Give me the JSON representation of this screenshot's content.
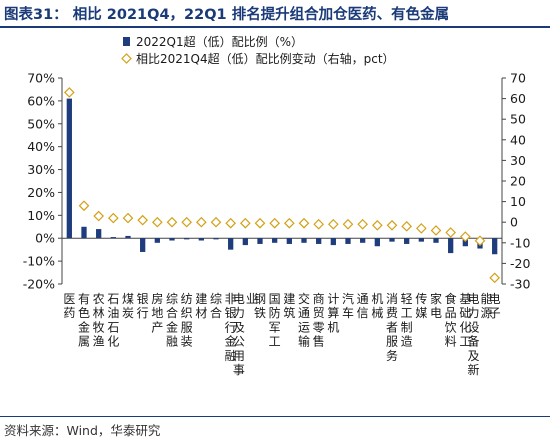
{
  "header": {
    "title": "图表31： 相比 2021Q4，22Q1 排名提升组合加仓医药、有色金属"
  },
  "footer": {
    "source": "资料来源：Wind，华泰研究"
  },
  "colors": {
    "bar": "#1f3d7c",
    "marker": "#d4a017",
    "title": "#1a3a78"
  },
  "chart_data": {
    "type": "bar",
    "categories": [
      "医药",
      "有色金属",
      "农林牧渔",
      "石油石化",
      "煤炭",
      "银行",
      "房地产",
      "综合金融",
      "纺织服装",
      "建材",
      "综合",
      "非银行金融",
      "电力及公用事业",
      "钢铁",
      "国防军工",
      "建筑",
      "交通运输",
      "商贸零售",
      "计算机",
      "汽车",
      "通信",
      "机械",
      "消费者服务",
      "轻工制造",
      "传媒",
      "家电",
      "食品饮料",
      "基础化工",
      "电力设备及新能源",
      "电子"
    ],
    "series": [
      {
        "name": "2022Q1超（低）配比例（%）",
        "type": "bar",
        "axis": "left",
        "values": [
          61,
          5,
          4,
          0.5,
          1,
          -6,
          -2,
          -1,
          -0.5,
          -1,
          -0.5,
          -5,
          -3,
          -2.5,
          -2,
          -2.5,
          -2,
          -2.5,
          -3,
          -2.5,
          -2,
          -3.5,
          -1.5,
          -2.5,
          -1.5,
          -2,
          -6.5,
          -3.5,
          -4.5,
          -7
        ]
      },
      {
        "name": "相比2021Q4超（低）配比例变动（右轴，pct）",
        "type": "scatter",
        "axis": "right",
        "values": [
          63,
          8,
          3,
          2,
          2,
          1,
          0,
          0,
          0,
          0,
          0,
          -0.5,
          -0.5,
          -0.5,
          -0.5,
          -0.5,
          -0.5,
          -1,
          -1,
          -1,
          -1,
          -1.5,
          -1.5,
          -2,
          -3,
          -4,
          -5,
          -7,
          -9,
          -27
        ]
      }
    ],
    "y_left": {
      "min": -20,
      "max": 70,
      "ticks": [
        "70%",
        "60%",
        "50%",
        "40%",
        "30%",
        "20%",
        "10%",
        "0%",
        "-10%",
        "-20%"
      ]
    },
    "y_right": {
      "min": -30,
      "max": 70,
      "ticks": [
        "70",
        "60",
        "50",
        "40",
        "30",
        "20",
        "10",
        "0",
        "-10",
        "-20",
        "-30"
      ]
    },
    "legend": {
      "position": "top-left"
    },
    "grid": false
  }
}
